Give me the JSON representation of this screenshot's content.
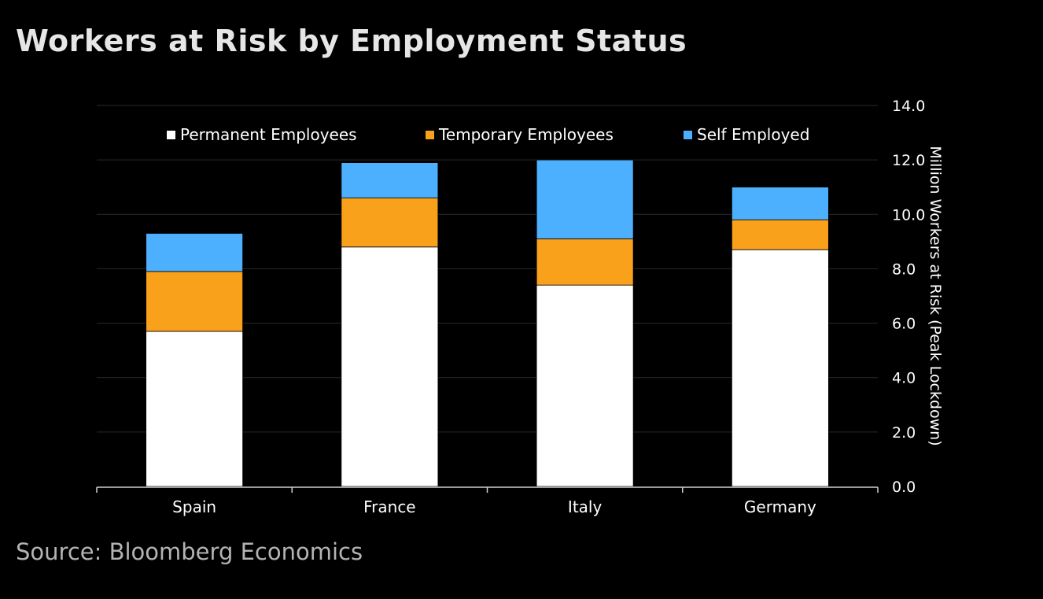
{
  "page": {
    "title": "Workers at Risk by Employment Status",
    "source": "Source: Bloomberg Economics"
  },
  "chart_data": {
    "type": "bar",
    "stacked": true,
    "title": "Workers at Risk by Employment Status",
    "xlabel": "",
    "ylabel": "Million Workers at Risk (Peak Lockdown)",
    "y_axis_side": "right",
    "ylim": [
      0,
      14
    ],
    "yticks": [
      "0.0",
      "2.0",
      "4.0",
      "6.0",
      "8.0",
      "10.0",
      "12.0",
      "14.0"
    ],
    "grid": true,
    "legend_position": "top-center",
    "categories": [
      "Spain",
      "France",
      "Italy",
      "Germany"
    ],
    "series": [
      {
        "name": "Permanent Employees",
        "color": "#ffffff",
        "values": [
          5.7,
          8.8,
          7.4,
          8.7
        ]
      },
      {
        "name": "Temporary Employees",
        "color": "#f9a11b",
        "values": [
          2.2,
          1.8,
          1.7,
          1.1
        ]
      },
      {
        "name": "Self Employed",
        "color": "#4db0fe",
        "values": [
          1.4,
          1.3,
          2.9,
          1.2
        ]
      }
    ]
  }
}
